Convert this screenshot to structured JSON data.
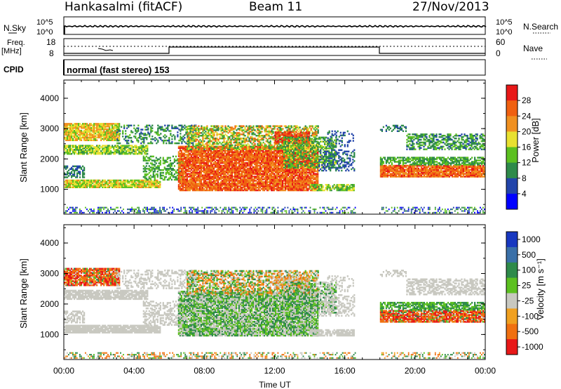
{
  "header": {
    "station": "Hankasalmi (fitACF)",
    "beam": "Beam 11",
    "date": "27/Nov/2013"
  },
  "nsky_panel": {
    "left_label": "N.Sky",
    "right_label": "N.Search",
    "y_ticks": [
      "10^5",
      "10^0"
    ]
  },
  "freq_panel": {
    "left_label_top": "Freq.",
    "left_label_bottom": "[MHz]",
    "left_ticks": [
      "18",
      "8"
    ],
    "right_label": "Nave",
    "right_ticks": [
      "60",
      "0"
    ]
  },
  "cpid": {
    "label": "CPID",
    "value": "normal (fast stereo) 153"
  },
  "chart_data": [
    {
      "type": "heatmap",
      "name": "power",
      "ylabel": "Slant Range [km]",
      "xlabel": "",
      "x_ticks": [
        "00:00",
        "04:00",
        "08:00",
        "12:00",
        "16:00",
        "20:00",
        "00:00"
      ],
      "x_range_hours": [
        0,
        24
      ],
      "ylim": [
        180,
        4600
      ],
      "y_ticks": [
        1000,
        2000,
        3000,
        4000
      ],
      "colorbar": {
        "label": "Power [dB]",
        "range": [
          0,
          32
        ],
        "ticks": [
          "4",
          "8",
          "12",
          "16",
          "20",
          "24",
          "28"
        ],
        "colors": [
          "#0000ff",
          "#2244aa",
          "#2e8a4a",
          "#5cc020",
          "#e8e030",
          "#f09020",
          "#f06010",
          "#e81818"
        ]
      }
    },
    {
      "type": "heatmap",
      "name": "velocity",
      "ylabel": "Slant Range [km]",
      "xlabel": "Time UT",
      "x_ticks": [
        "00:00",
        "04:00",
        "08:00",
        "12:00",
        "16:00",
        "20:00",
        "00:00"
      ],
      "x_range_hours": [
        0,
        24
      ],
      "ylim": [
        180,
        4600
      ],
      "y_ticks": [
        1000,
        2000,
        3000,
        4000
      ],
      "colorbar": {
        "label": "Velocity [m s⁻¹]",
        "ticks": [
          "1000",
          "500",
          "100",
          "25",
          "-25",
          "-100",
          "-500",
          "-1000"
        ],
        "colors": [
          "#1838c0",
          "#3a70a8",
          "#2e8a4a",
          "#5cc020",
          "#c8c8c0",
          "#f0a020",
          "#f07010",
          "#e81818"
        ]
      }
    }
  ]
}
